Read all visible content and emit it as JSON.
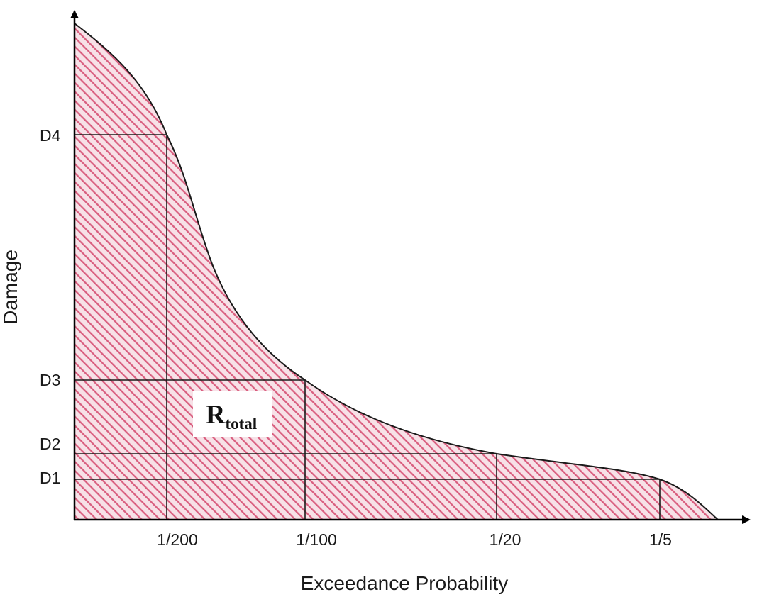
{
  "diagram": {
    "axes": {
      "x_title": "Exceedance Probability",
      "y_title": "Damage"
    },
    "x_ticks": [
      "1/200",
      "1/100",
      "1/20",
      "1/5"
    ],
    "y_ticks": [
      "D4",
      "D3",
      "D2",
      "D1"
    ],
    "region_label": {
      "main": "R",
      "subscript": "total"
    },
    "colors": {
      "hatch": "#d95e7f",
      "hatch_background": "#f7e1e7",
      "curve": "#1a1a1a",
      "axis": "#000000",
      "label_box": "#ffffff"
    }
  }
}
